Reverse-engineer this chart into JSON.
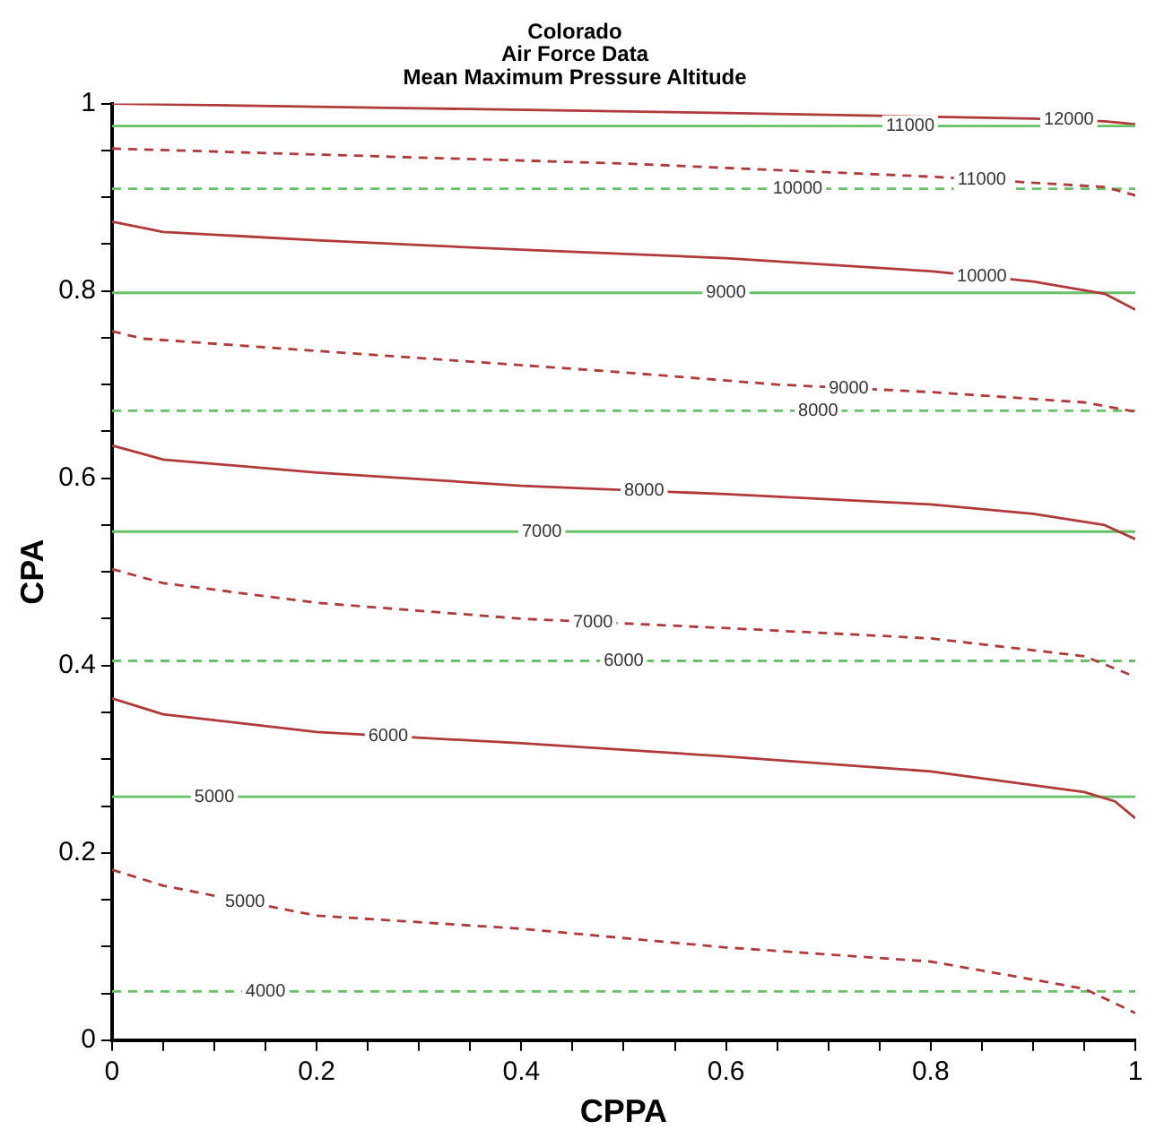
{
  "chart_data": {
    "type": "line",
    "title": "Colorado\nAir Force Data\nMean Maximum Pressure Altitude",
    "xlabel": "CPPA",
    "ylabel": "CPA",
    "xlim": [
      0,
      1
    ],
    "ylim": [
      0,
      1
    ],
    "xticks": [
      0,
      {
        "value": 0.05,
        "label": null
      },
      {
        "value": 0.1,
        "label": null
      },
      {
        "value": 0.15,
        "label": null
      },
      0.2,
      {
        "value": 0.25,
        "label": null
      },
      {
        "value": 0.3,
        "label": null
      },
      {
        "value": 0.35,
        "label": null
      },
      0.4,
      {
        "value": 0.45,
        "label": null
      },
      {
        "value": 0.5,
        "label": null
      },
      {
        "value": 0.55,
        "label": null
      },
      0.6,
      {
        "value": 0.65,
        "label": null
      },
      {
        "value": 0.7,
        "label": null
      },
      {
        "value": 0.75,
        "label": null
      },
      0.8,
      {
        "value": 0.85,
        "label": null
      },
      {
        "value": 0.9,
        "label": null
      },
      {
        "value": 0.95,
        "label": null
      },
      1
    ],
    "yticks": [
      0,
      {
        "value": 0.05,
        "label": null
      },
      {
        "value": 0.1,
        "label": null
      },
      {
        "value": 0.15,
        "label": null
      },
      0.2,
      {
        "value": 0.25,
        "label": null
      },
      {
        "value": 0.3,
        "label": null
      },
      {
        "value": 0.35,
        "label": null
      },
      0.4,
      {
        "value": 0.45,
        "label": null
      },
      {
        "value": 0.5,
        "label": null
      },
      {
        "value": 0.55,
        "label": null
      },
      0.6,
      {
        "value": 0.65,
        "label": null
      },
      {
        "value": 0.7,
        "label": null
      },
      {
        "value": 0.75,
        "label": null
      },
      0.8,
      {
        "value": 0.85,
        "label": null
      },
      {
        "value": 0.9,
        "label": null
      },
      {
        "value": 0.95,
        "label": null
      },
      1
    ],
    "grid": false,
    "legend": false,
    "marker": "none",
    "series": [
      {
        "name": "11000",
        "color": "#66c266",
        "line_style": "solid",
        "x": [
          0,
          1
        ],
        "values": [
          0.976,
          0.976
        ]
      },
      {
        "name": "12000",
        "color": "#b03a3a",
        "line_style": "solid",
        "x": [
          0,
          0.3,
          0.6,
          0.9,
          0.97,
          1
        ],
        "values": [
          1.0,
          0.995,
          0.99,
          0.984,
          0.981,
          0.978
        ]
      },
      {
        "name": "11000",
        "color": "#b03a3a",
        "line_style": "dashed",
        "x": [
          0,
          0.5,
          0.8,
          0.97,
          1
        ],
        "values": [
          0.952,
          0.936,
          0.922,
          0.911,
          0.902
        ]
      },
      {
        "name": "10000",
        "color": "#66c266",
        "line_style": "dashed",
        "x": [
          0,
          1
        ],
        "values": [
          0.909,
          0.909
        ]
      },
      {
        "name": "10000",
        "color": "#b03a3a",
        "line_style": "solid",
        "x": [
          0,
          0.05,
          0.2,
          0.4,
          0.6,
          0.8,
          0.9,
          0.97,
          1
        ],
        "values": [
          0.874,
          0.863,
          0.854,
          0.844,
          0.835,
          0.821,
          0.81,
          0.797,
          0.78
        ]
      },
      {
        "name": "9000",
        "color": "#66c266",
        "line_style": "solid",
        "x": [
          0,
          1
        ],
        "values": [
          0.798,
          0.798
        ]
      },
      {
        "name": "9000",
        "color": "#b03a3a",
        "line_style": "dashed",
        "x": [
          0,
          0.03,
          0.5,
          0.65,
          0.8,
          0.95,
          1
        ],
        "values": [
          0.757,
          0.749,
          0.713,
          0.7,
          0.692,
          0.681,
          0.671
        ]
      },
      {
        "name": "8000",
        "color": "#66c266",
        "line_style": "dashed",
        "x": [
          0,
          1
        ],
        "values": [
          0.672,
          0.672
        ]
      },
      {
        "name": "8000",
        "color": "#b03a3a",
        "line_style": "solid",
        "x": [
          0,
          0.05,
          0.2,
          0.4,
          0.6,
          0.8,
          0.9,
          0.97,
          1
        ],
        "values": [
          0.635,
          0.62,
          0.606,
          0.592,
          0.583,
          0.572,
          0.562,
          0.55,
          0.535
        ]
      },
      {
        "name": "7000",
        "color": "#66c266",
        "line_style": "solid",
        "x": [
          0,
          1
        ],
        "values": [
          0.543,
          0.543
        ]
      },
      {
        "name": "7000",
        "color": "#b03a3a",
        "line_style": "dashed",
        "x": [
          0,
          0.05,
          0.2,
          0.4,
          0.6,
          0.8,
          0.95,
          1
        ],
        "values": [
          0.503,
          0.488,
          0.467,
          0.45,
          0.44,
          0.429,
          0.41,
          0.388
        ]
      },
      {
        "name": "6000",
        "color": "#66c266",
        "line_style": "dashed",
        "x": [
          0,
          1
        ],
        "values": [
          0.405,
          0.405
        ]
      },
      {
        "name": "6000",
        "color": "#b03a3a",
        "line_style": "solid",
        "x": [
          0,
          0.05,
          0.2,
          0.4,
          0.6,
          0.8,
          0.95,
          0.98,
          1
        ],
        "values": [
          0.365,
          0.348,
          0.329,
          0.317,
          0.303,
          0.287,
          0.265,
          0.255,
          0.237
        ]
      },
      {
        "name": "5000",
        "color": "#66c266",
        "line_style": "solid",
        "x": [
          0,
          1
        ],
        "values": [
          0.26,
          0.26
        ]
      },
      {
        "name": "5000",
        "color": "#b03a3a",
        "line_style": "dashed",
        "x": [
          0,
          0.05,
          0.2,
          0.4,
          0.6,
          0.8,
          0.95,
          1
        ],
        "values": [
          0.182,
          0.165,
          0.133,
          0.119,
          0.099,
          0.084,
          0.055,
          0.029
        ]
      },
      {
        "name": "4000",
        "color": "#66c266",
        "line_style": "dashed",
        "x": [
          0,
          1
        ],
        "values": [
          0.052,
          0.052
        ]
      }
    ]
  }
}
